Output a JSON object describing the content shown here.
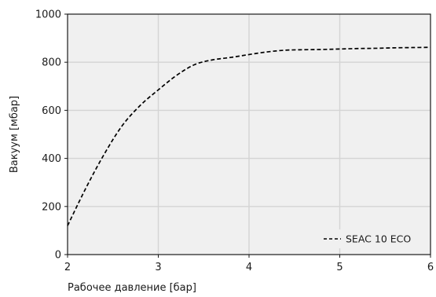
{
  "chart_data": {
    "type": "line",
    "xlabel": "Рабочее давление [бар]",
    "ylabel": "Вакуум [мбар]",
    "xlim": [
      2,
      6
    ],
    "ylim": [
      0,
      1000
    ],
    "x_ticks": [
      "2",
      "3",
      "4",
      "5",
      "6"
    ],
    "y_ticks": [
      "0",
      "200",
      "400",
      "600",
      "800",
      "1000"
    ],
    "grid": true,
    "legend_position": "bottom-right",
    "background_color": "#f0f0f0",
    "grid_color": "#d4d4d4",
    "series": [
      {
        "name": "SEAC 10 ECO",
        "color": "#000000",
        "line_style": "dashed",
        "x": [
          2.0,
          2.2,
          2.4,
          2.6,
          2.8,
          3.0,
          3.2,
          3.4,
          3.6,
          3.8,
          4.0,
          4.2,
          4.4,
          4.6,
          4.8,
          5.0,
          5.2,
          5.4,
          5.6,
          5.8,
          6.0
        ],
        "y": [
          120,
          275,
          415,
          535,
          620,
          685,
          745,
          790,
          810,
          820,
          832,
          843,
          850,
          852,
          853,
          855,
          857,
          858,
          860,
          861,
          862
        ]
      }
    ]
  }
}
